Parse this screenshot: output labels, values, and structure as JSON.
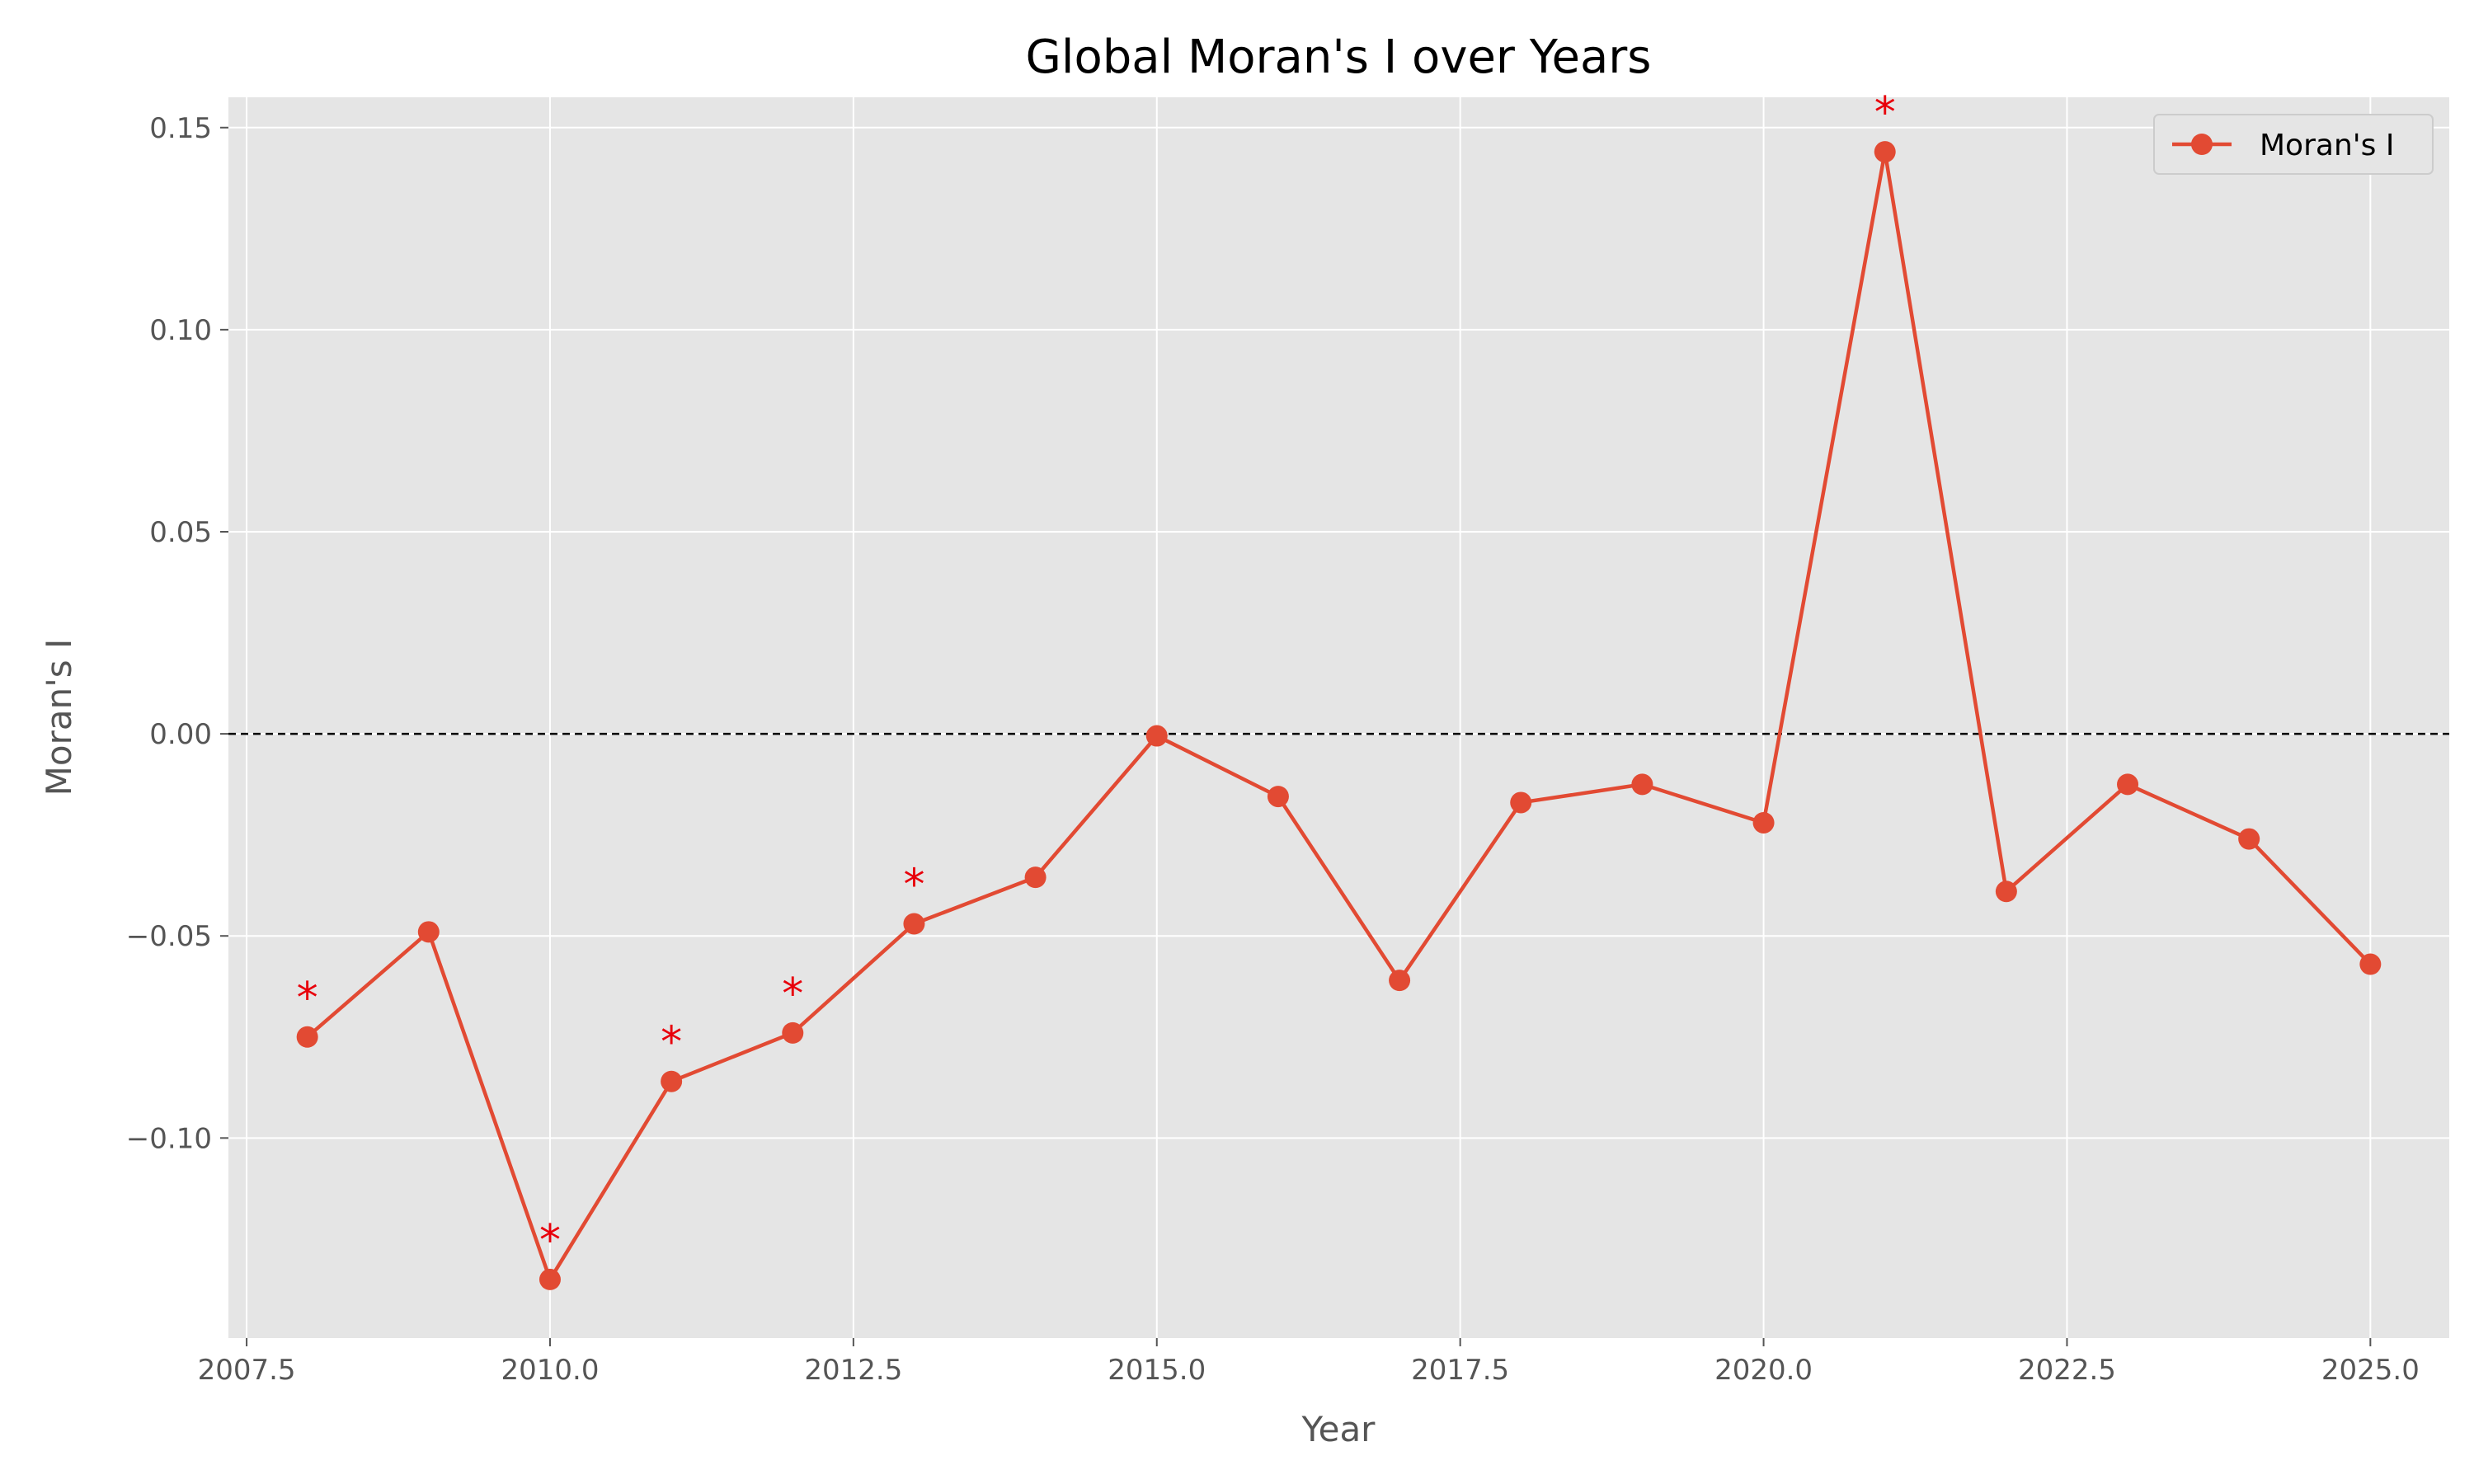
{
  "chart_data": {
    "type": "line",
    "title": "Global Moran's I over Years",
    "xlabel": "Year",
    "ylabel": "Moran's I",
    "xlim": [
      2007.35,
      2025.65
    ],
    "ylim": [
      -0.1495,
      0.1575
    ],
    "xticks": [
      2007.5,
      2010.0,
      2012.5,
      2015.0,
      2017.5,
      2020.0,
      2022.5,
      2025.0
    ],
    "xtick_labels": [
      "2007.5",
      "2010.0",
      "2012.5",
      "2015.0",
      "2017.5",
      "2020.0",
      "2022.5",
      "2025.0"
    ],
    "yticks": [
      -0.1,
      -0.05,
      0.0,
      0.05,
      0.1,
      0.15
    ],
    "ytick_labels": [
      "−0.10",
      "−0.05",
      "0.00",
      "0.05",
      "0.10",
      "0.15"
    ],
    "grid": true,
    "legend_position": "top-right",
    "reference_line": {
      "y": 0.0,
      "style": "dashed",
      "color": "#000000"
    },
    "series": [
      {
        "name": "Moran's I",
        "color": "#E24A33",
        "x": [
          2008,
          2009,
          2010,
          2011,
          2012,
          2013,
          2014,
          2015,
          2016,
          2017,
          2018,
          2019,
          2020,
          2021,
          2022,
          2023,
          2024,
          2025
        ],
        "y": [
          -0.075,
          -0.049,
          -0.135,
          -0.086,
          -0.074,
          -0.047,
          -0.0355,
          -0.0005,
          -0.0155,
          -0.061,
          -0.017,
          -0.0125,
          -0.022,
          0.144,
          -0.039,
          -0.0125,
          -0.026,
          -0.057
        ]
      }
    ],
    "annotations": {
      "symbol": "*",
      "color": "#E8000B",
      "years": [
        2008,
        2010,
        2011,
        2012,
        2013,
        2021
      ]
    }
  }
}
